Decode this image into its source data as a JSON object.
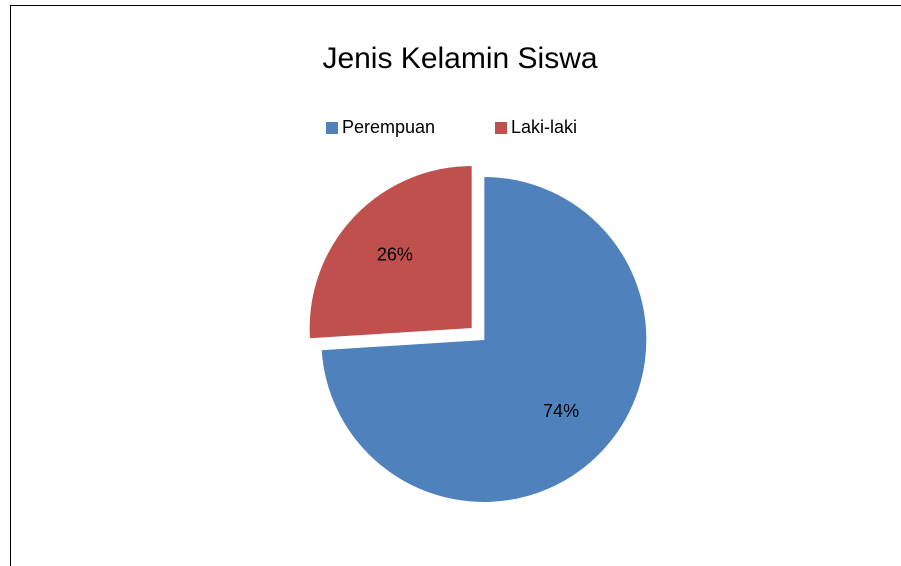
{
  "chart_data": {
    "type": "pie",
    "title": "Jenis Kelamin Siswa",
    "categories": [
      "Perempuan",
      "Laki-laki"
    ],
    "values": [
      74,
      26
    ],
    "value_labels": [
      "74%",
      "26%"
    ],
    "colors": [
      "#4f81bd",
      "#c0504d"
    ],
    "legend": "top"
  }
}
